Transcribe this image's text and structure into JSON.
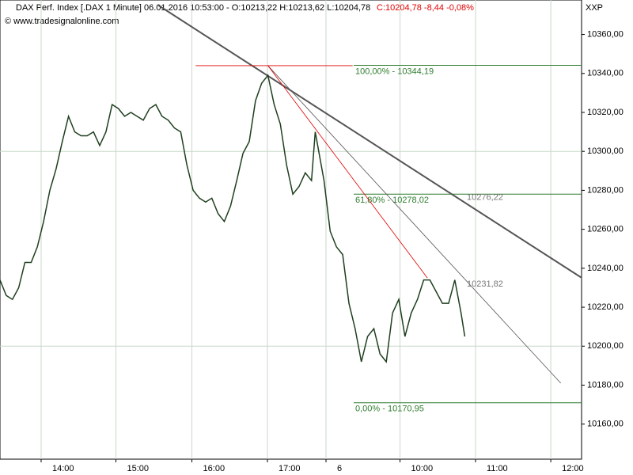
{
  "chart_data": {
    "type": "line",
    "title": "DAX Perf. Index [.DAX  1 Minute] 06.01.2016 10:53:00 - O:10213,22 H:10213,62 L:10204,78",
    "title_change": "C:10204,78 -8,44 -0,08%",
    "subtitle": "© www.tradesignalonline.com",
    "corner_label": "XXP",
    "series": [
      {
        "name": "Close",
        "color": "#1f3f1f",
        "x": [
          0,
          5,
          10,
          15,
          20,
          25,
          30,
          35,
          40,
          45,
          50,
          55,
          60,
          65,
          70,
          75,
          80,
          85,
          90,
          95,
          100,
          105,
          110,
          115,
          120,
          125,
          130,
          135,
          140,
          145,
          150,
          155,
          160,
          165,
          170,
          175,
          180,
          185,
          190,
          195,
          200,
          205,
          210,
          215,
          220,
          225,
          230,
          235,
          240,
          245,
          250,
          253,
          260,
          265,
          270,
          275,
          280,
          285,
          290,
          295,
          300,
          305,
          310,
          315,
          320,
          325,
          330,
          335,
          340,
          345,
          350,
          355,
          360,
          365,
          370,
          373
        ],
        "values": [
          10234,
          10226,
          10224,
          10230,
          10243,
          10243,
          10251,
          10264,
          10280,
          10291,
          10305,
          10318,
          10310,
          10308,
          10308,
          10310,
          10303,
          10310,
          10324,
          10322,
          10318,
          10320,
          10318,
          10316,
          10322,
          10324,
          10318,
          10316,
          10312,
          10310,
          10293,
          10280,
          10276,
          10274,
          10276,
          10268,
          10264,
          10272,
          10285,
          10299,
          10305,
          10326,
          10335,
          10339,
          10324,
          10314,
          10293,
          10278,
          10282,
          10289,
          10285,
          10310,
          10285,
          10259,
          10251,
          10247,
          10222,
          10209,
          10192,
          10205,
          10209,
          10196,
          10192,
          10217,
          10224,
          10205,
          10217,
          10224,
          10234,
          10234,
          10228,
          10222,
          10222,
          10234,
          10217,
          10205
        ]
      }
    ],
    "levels": [
      {
        "value": 10344.19,
        "label": "100,00% - 10344,19",
        "color": "#2e7d2e"
      },
      {
        "value": 10278.02,
        "label": "61,80% - 10278,02",
        "color": "#2e7d2e"
      },
      {
        "value": 10170.95,
        "label": "0,00% - 10170,95",
        "color": "#2e7d2e"
      }
    ],
    "trendlines": [
      {
        "x": [
          127,
          467
        ],
        "values": [
          10375,
          10235
        ],
        "color": "#555555",
        "width": 2,
        "value_label": "10276,22",
        "label_value": 10276.22
      },
      {
        "x": [
          215,
          450
        ],
        "values": [
          10344,
          10181
        ],
        "color": "#555555",
        "width": 0.8,
        "value_label": "10231,82",
        "label_value": 10231.82
      },
      {
        "x": [
          215,
          343
        ],
        "values": [
          10344,
          10235
        ],
        "color": "#e00000",
        "width": 0.8
      },
      {
        "x": [
          157,
          283
        ],
        "values": [
          10344,
          10344
        ],
        "color": "#e00000",
        "width": 0.8
      }
    ],
    "xlim": [
      0,
      466.7
    ],
    "xticks": [
      {
        "value": 33,
        "label": "14:00"
      },
      {
        "value": 93,
        "label": "15:00"
      },
      {
        "value": 154,
        "label": "16:00"
      },
      {
        "value": 214.6,
        "label": "17:00"
      },
      {
        "value": 261.6,
        "label": "6"
      },
      {
        "value": 321,
        "label": "10:00"
      },
      {
        "value": 381.6,
        "label": "11:00"
      },
      {
        "value": 442,
        "label": "12:00"
      }
    ],
    "ylim": [
      10142,
      10377.7
    ],
    "yticks": [
      {
        "value": 10160,
        "label": "10160,00"
      },
      {
        "value": 10180,
        "label": "10180,00"
      },
      {
        "value": 10200,
        "label": "10200,00"
      },
      {
        "value": 10220,
        "label": "10220,00"
      },
      {
        "value": 10240,
        "label": "10240,00"
      },
      {
        "value": 10260,
        "label": "10260,00"
      },
      {
        "value": 10280,
        "label": "10280,00"
      },
      {
        "value": 10300,
        "label": "10300,00"
      },
      {
        "value": 10320,
        "label": "10320,00"
      },
      {
        "value": 10340,
        "label": "10340,00"
      },
      {
        "value": 10360,
        "label": "10360,00"
      }
    ],
    "ygrid": [
      10200,
      10300
    ],
    "grid_color": "#c8d8c8"
  }
}
